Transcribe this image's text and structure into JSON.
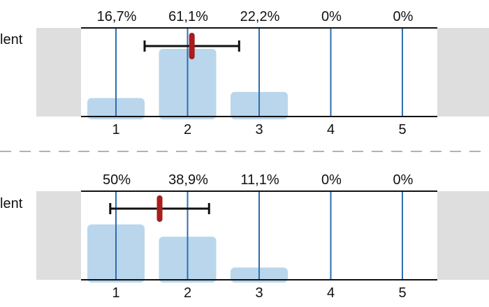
{
  "colors": {
    "bar": "#b9d6ec",
    "gridline": "#2f6db0",
    "mean_marker": "#a81d1d",
    "error_bar": "#111111",
    "side_panel": "#dedede",
    "axis": "#111111",
    "separator": "#999999"
  },
  "chart_data": [
    {
      "type": "bar",
      "row_label": "lent",
      "categories": [
        "1",
        "2",
        "3",
        "4",
        "5"
      ],
      "values": [
        16.7,
        61.1,
        22.2,
        0,
        0
      ],
      "value_labels": [
        "16,7%",
        "61,1%",
        "22,2%",
        "0%",
        "0%"
      ],
      "mean": 2.06,
      "error_range": [
        1.4,
        2.72
      ],
      "ylim": [
        0,
        80
      ]
    },
    {
      "type": "bar",
      "row_label": "lent",
      "categories": [
        "1",
        "2",
        "3",
        "4",
        "5"
      ],
      "values": [
        50,
        38.9,
        11.1,
        0,
        0
      ],
      "value_labels": [
        "50%",
        "38,9%",
        "11,1%",
        "0%",
        "0%"
      ],
      "mean": 1.61,
      "error_range": [
        0.92,
        2.3
      ],
      "ylim": [
        0,
        80
      ]
    }
  ]
}
